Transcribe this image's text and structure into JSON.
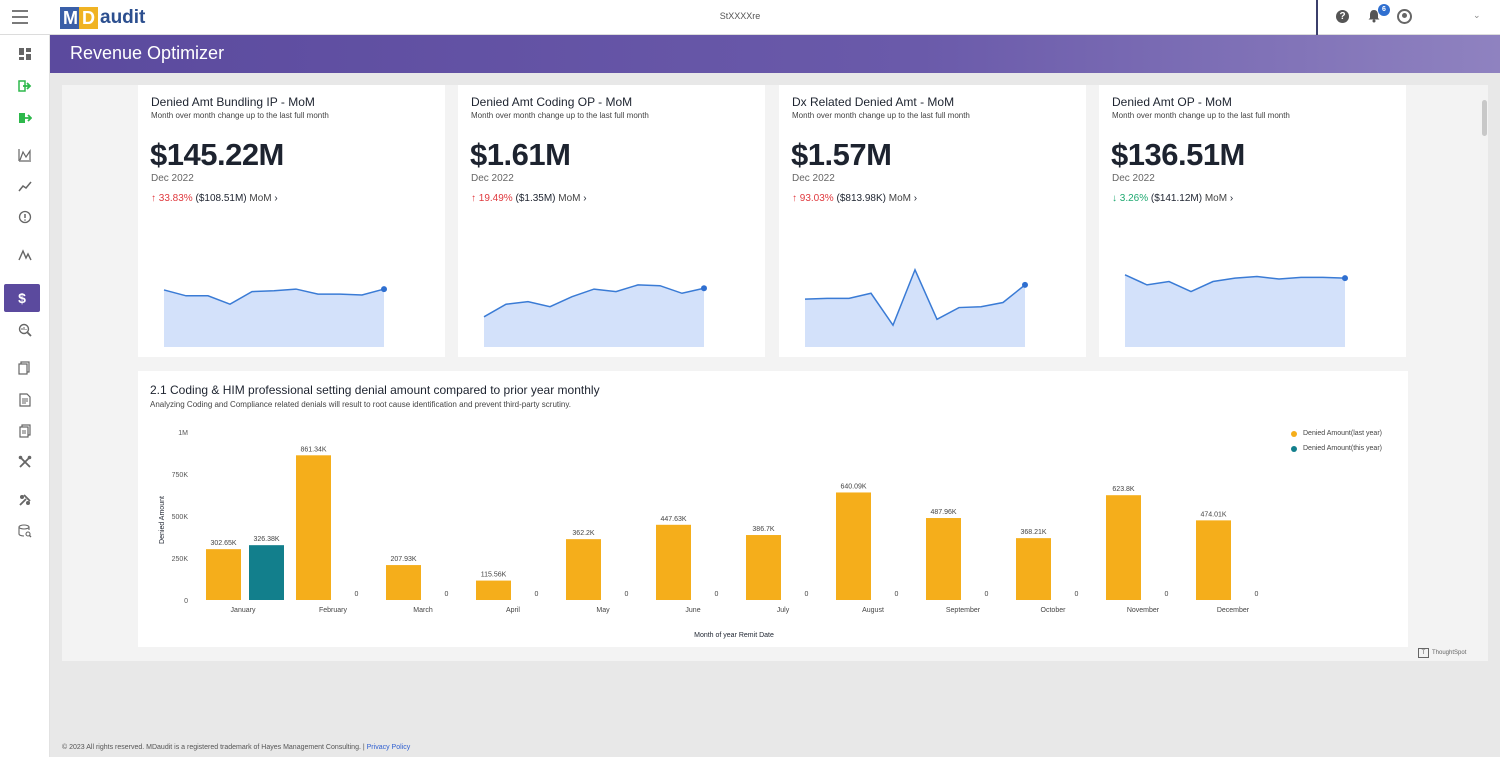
{
  "header": {
    "logo_m": "M",
    "logo_d": "D",
    "logo_audit": "audit",
    "org_name": "StXXXXre",
    "notification_count": "6"
  },
  "page": {
    "title": "Revenue Optimizer"
  },
  "kpis": [
    {
      "title": "Denied Amt Bundling IP - MoM",
      "subtitle": "Month over month change up to the last full month",
      "value": "$145.22M",
      "date": "Dec 2022",
      "change_arrow": "↑",
      "change_pct": "33.83%",
      "change_dir": "up",
      "change_amt": "($108.51M)",
      "change_label": "MoM",
      "sparkline": [
        62,
        55,
        55,
        45,
        60,
        61,
        63,
        57,
        57,
        56,
        63
      ]
    },
    {
      "title": "Denied Amt Coding OP - MoM",
      "subtitle": "Month over month change up to the last full month",
      "value": "$1.61M",
      "date": "Dec 2022",
      "change_arrow": "↑",
      "change_pct": "19.49%",
      "change_dir": "up",
      "change_amt": "($1.35M)",
      "change_label": "MoM",
      "sparkline": [
        30,
        45,
        48,
        42,
        54,
        63,
        60,
        68,
        67,
        58,
        64
      ]
    },
    {
      "title": "Dx Related Denied Amt - MoM",
      "subtitle": "Month over month change up to the last full month",
      "value": "$1.57M",
      "date": "Dec 2022",
      "change_arrow": "↑",
      "change_pct": "93.03%",
      "change_dir": "up",
      "change_amt": "($813.98K)",
      "change_label": "MoM",
      "sparkline": [
        51,
        52,
        52,
        58,
        20,
        86,
        27,
        41,
        42,
        47,
        68
      ]
    },
    {
      "title": "Denied Amt OP - MoM",
      "subtitle": "Month over month change up to the last full month",
      "value": "$136.51M",
      "date": "Dec 2022",
      "change_arrow": "↓",
      "change_pct": "3.26%",
      "change_dir": "down",
      "change_amt": "($141.12M)",
      "change_label": "MoM",
      "sparkline": [
        80,
        68,
        72,
        60,
        72,
        76,
        78,
        75,
        77,
        77,
        76
      ]
    }
  ],
  "chart_data": {
    "type": "bar",
    "title": "2.1 Coding & HIM professional setting denial amount compared to prior year monthly",
    "subtitle": "Analyzing Coding and Compliance related denials will result to root cause identification and prevent third-party scrutiny.",
    "xlabel": "Month of year Remit Date",
    "ylabel": "Denied Amount",
    "ylim": [
      0,
      1000000
    ],
    "yticks": [
      "0",
      "250K",
      "500K",
      "750K",
      "1M"
    ],
    "categories": [
      "January",
      "February",
      "March",
      "April",
      "May",
      "June",
      "July",
      "August",
      "September",
      "October",
      "November",
      "December"
    ],
    "series": [
      {
        "name": "Denied Amount(last year)",
        "color": "#f5ae1b",
        "values": [
          302650,
          861340,
          207930,
          115560,
          362200,
          447630,
          386700,
          640090,
          487960,
          368210,
          623800,
          474010
        ],
        "labels": [
          "302.65K",
          "861.34K",
          "207.93K",
          "115.56K",
          "362.2K",
          "447.63K",
          "386.7K",
          "640.09K",
          "487.96K",
          "368.21K",
          "623.8K",
          "474.01K"
        ]
      },
      {
        "name": "Denied Amount(this year)",
        "color": "#127f8c",
        "values": [
          326380,
          0,
          0,
          0,
          0,
          0,
          0,
          0,
          0,
          0,
          0,
          0
        ],
        "labels": [
          "326.38K",
          "0",
          "0",
          "0",
          "0",
          "0",
          "0",
          "0",
          "0",
          "0",
          "0",
          "0"
        ]
      }
    ],
    "legend_position": "top-right",
    "grid": false
  },
  "watermark": "ThoughtSpot",
  "footer": {
    "text": "© 2023 All rights reserved. MDaudit is a registered trademark of Hayes Management Consulting. |",
    "link": "Privacy Policy"
  }
}
